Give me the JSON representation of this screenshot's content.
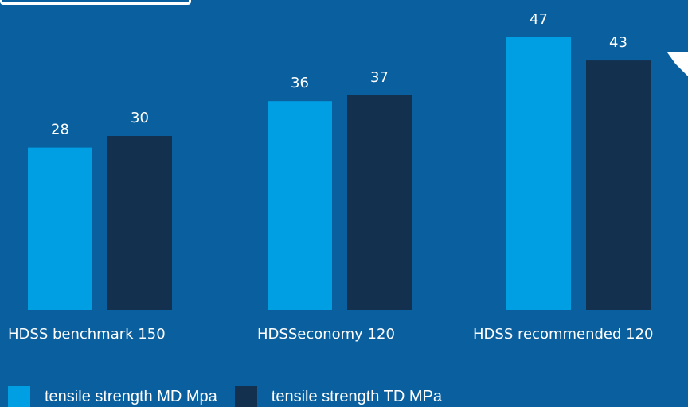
{
  "chart_data": {
    "type": "bar",
    "categories": [
      "HDSS benchmark 150",
      "HDSSeconomy 120",
      "HDSS recommended 120"
    ],
    "series": [
      {
        "name": "tensile strength MD Mpa",
        "values": [
          28,
          36,
          47
        ]
      },
      {
        "name": "tensile strength TD MPa",
        "values": [
          30,
          37,
          43
        ]
      }
    ],
    "title": "",
    "xlabel": "",
    "ylabel": "",
    "ylim": [
      0,
      50
    ],
    "grid": false,
    "legend": "bottom-left",
    "data_labels": true
  },
  "colors": {
    "background": "#0a5f9e",
    "series_md": "#009fe3",
    "series_td": "#13304f",
    "text": "#ffffff"
  },
  "icons": {
    "arrow": "arrow-icon"
  }
}
